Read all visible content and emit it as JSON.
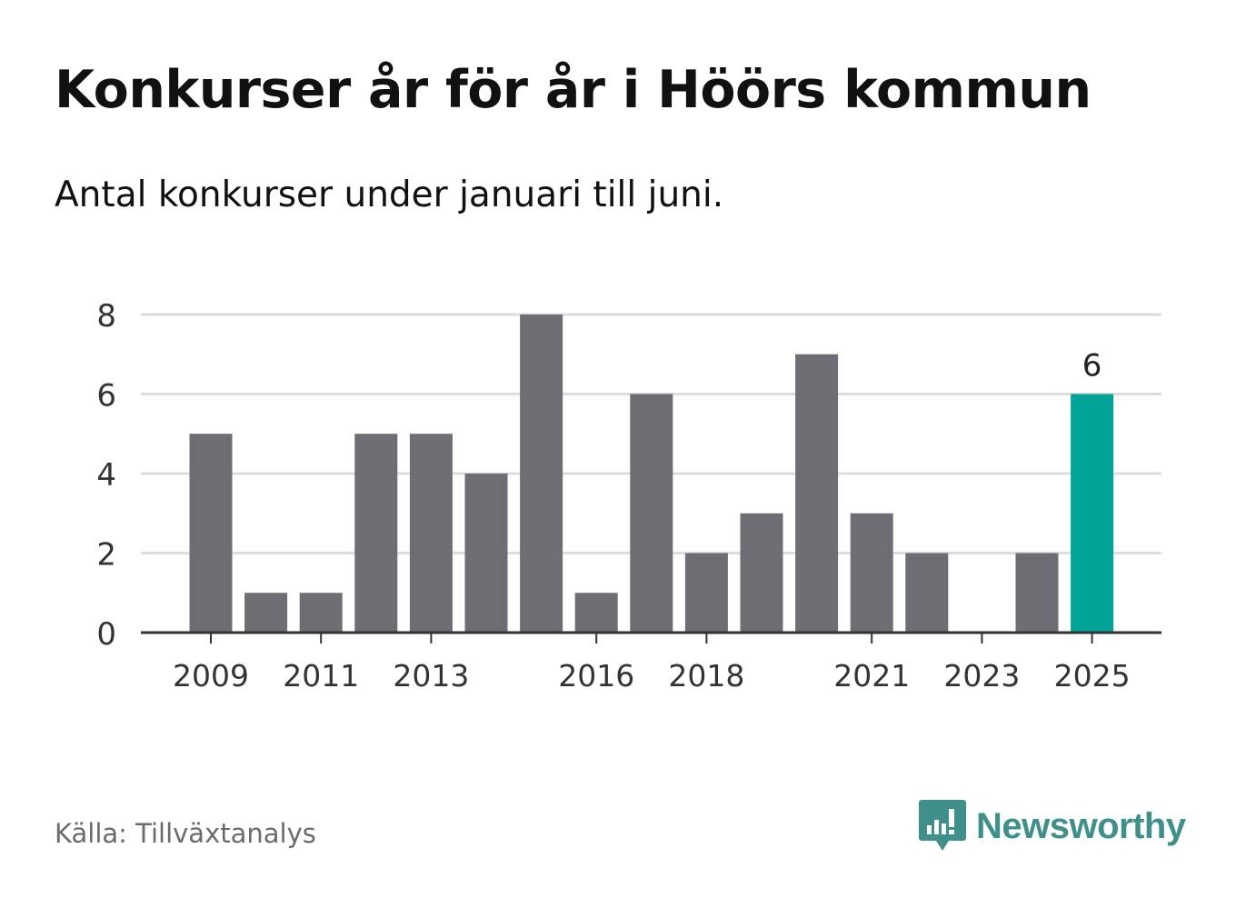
{
  "title": "Konkurser år för år i Höörs kommun",
  "subtitle": "Antal konkurser under januari till juni.",
  "source": "Källa: Tillväxtanalys",
  "brand": "Newsworthy",
  "colors": {
    "bar": "#6e6d74",
    "highlight": "#00a398",
    "grid": "#dddddd",
    "axis": "#333333",
    "brand": "#3f8f8a"
  },
  "chart_data": {
    "type": "bar",
    "categories": [
      "2009",
      "2010",
      "2011",
      "2012",
      "2013",
      "2014",
      "2015",
      "2016",
      "2017",
      "2018",
      "2019",
      "2020",
      "2021",
      "2022",
      "2023",
      "2024",
      "2025"
    ],
    "values": [
      5,
      1,
      1,
      5,
      5,
      4,
      8,
      1,
      6,
      2,
      3,
      7,
      3,
      2,
      0,
      2,
      6
    ],
    "highlight_category": "2025",
    "highlight_label": "6",
    "x_tick_labels": [
      "2009",
      "2011",
      "2013",
      "2016",
      "2018",
      "2021",
      "2023",
      "2025"
    ],
    "y_ticks": [
      0,
      2,
      4,
      6,
      8
    ],
    "ylim": [
      0,
      8
    ],
    "grid": true
  }
}
